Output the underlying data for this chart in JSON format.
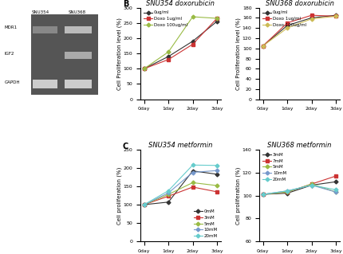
{
  "panel_B_title_left": "SNU354 doxorubicin",
  "panel_B_title_right": "SNU368 doxorubicin",
  "panel_C_title_left": "SNU354 metformin",
  "panel_C_title_right": "SNU368 metformin",
  "xdays": [
    "0day",
    "1day",
    "2day",
    "3day"
  ],
  "B_ylabel": "Cell Proliferation level (%)",
  "C_ylabel": "Cell proliferation (%)",
  "panel_B_left": {
    "ylim": [
      0,
      300
    ],
    "yticks": [
      0,
      50,
      100,
      150,
      200,
      250,
      300
    ],
    "lines": [
      {
        "label": "0ug/ml",
        "color": "#333333",
        "marker": "D",
        "data": [
          100,
          140,
          190,
          255
        ]
      },
      {
        "label": "Doxo 1ug/ml",
        "color": "#cc3333",
        "marker": "s",
        "data": [
          100,
          130,
          180,
          265
        ]
      },
      {
        "label": "Doxo 100ug/ml",
        "color": "#99bb44",
        "marker": "D",
        "data": [
          100,
          155,
          270,
          265
        ]
      }
    ]
  },
  "panel_B_right": {
    "ylim": [
      0,
      180
    ],
    "yticks": [
      0,
      20,
      40,
      60,
      80,
      100,
      120,
      140,
      160,
      180
    ],
    "lines": [
      {
        "label": "0ug/ml",
        "color": "#333333",
        "marker": "D",
        "data": [
          105,
          145,
          160,
          165
        ]
      },
      {
        "label": "Doxo 1ug/ml",
        "color": "#cc3333",
        "marker": "s",
        "data": [
          105,
          150,
          165,
          163
        ]
      },
      {
        "label": "Doxo 100ug/ml",
        "color": "#ccbb55",
        "marker": "D",
        "data": [
          105,
          140,
          158,
          163
        ]
      }
    ]
  },
  "panel_C_left": {
    "ylim": [
      0,
      250
    ],
    "yticks": [
      0,
      50,
      100,
      150,
      200,
      250
    ],
    "lines": [
      {
        "label": "0mM",
        "color": "#333333",
        "marker": "D",
        "data": [
          100,
          107,
          192,
          183
        ]
      },
      {
        "label": "3mM",
        "color": "#cc3333",
        "marker": "s",
        "data": [
          100,
          123,
          148,
          135
        ]
      },
      {
        "label": "5mM",
        "color": "#99bb44",
        "marker": "D",
        "data": [
          100,
          128,
          160,
          152
        ]
      },
      {
        "label": "10mM",
        "color": "#7799cc",
        "marker": "D",
        "data": [
          100,
          132,
          188,
          193
        ]
      },
      {
        "label": "20mM",
        "color": "#66cccc",
        "marker": "D",
        "data": [
          100,
          138,
          208,
          207
        ]
      }
    ]
  },
  "panel_C_right": {
    "ylim": [
      60,
      140
    ],
    "yticks": [
      60,
      80,
      100,
      120,
      140
    ],
    "lines": [
      {
        "label": "3mM",
        "color": "#333333",
        "marker": "D",
        "data": [
          101,
          102,
          109,
          112
        ]
      },
      {
        "label": "7mM",
        "color": "#cc3333",
        "marker": "s",
        "data": [
          101,
          103,
          110,
          117
        ]
      },
      {
        "label": "5mM",
        "color": "#99bb44",
        "marker": "D",
        "data": [
          101,
          103,
          110,
          103
        ]
      },
      {
        "label": "10mM",
        "color": "#7799cc",
        "marker": "D",
        "data": [
          101,
          104,
          109,
          103
        ]
      },
      {
        "label": "20mM",
        "color": "#66cccc",
        "marker": "D",
        "data": [
          101,
          104,
          109,
          105
        ]
      }
    ]
  },
  "bg_color": "#ffffff",
  "title_fontsize": 6,
  "label_fontsize": 5,
  "tick_fontsize": 4.5,
  "legend_fontsize": 4,
  "linewidth": 0.8,
  "markersize": 2.5
}
